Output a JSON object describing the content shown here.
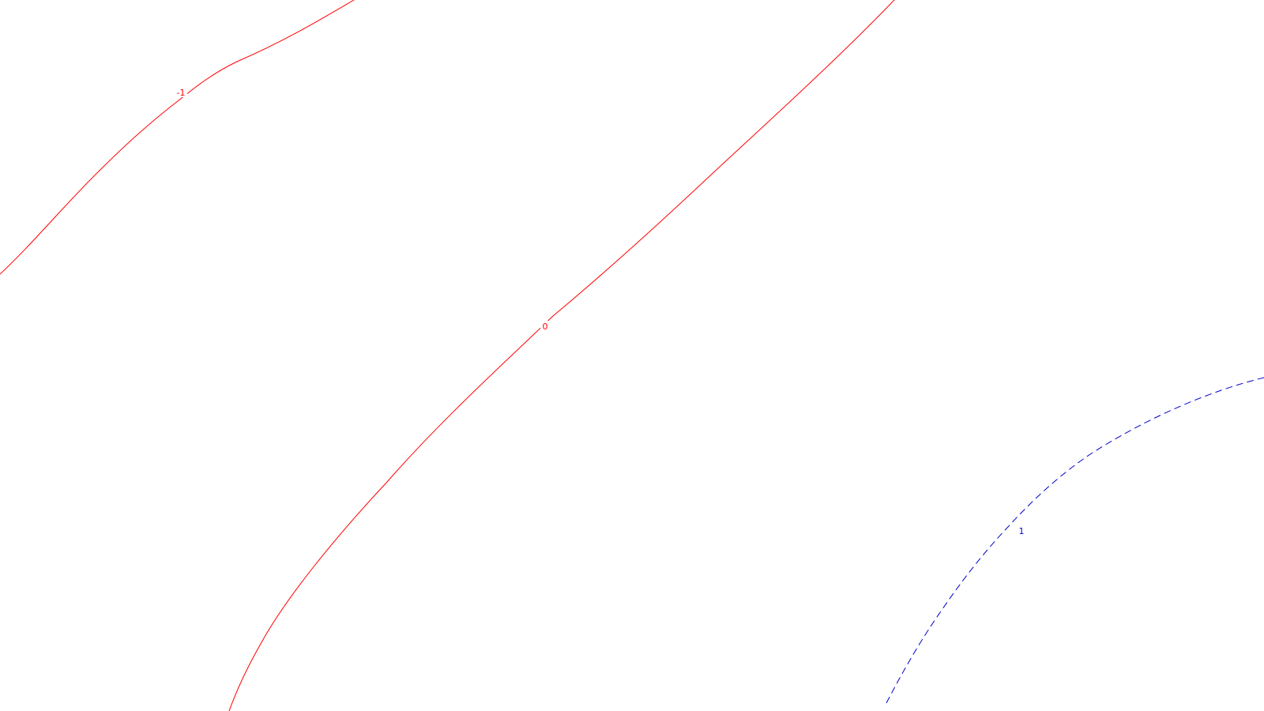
{
  "map": {
    "background_color": "#ffffff",
    "contours": [
      {
        "level_label": "-1",
        "color": "#ff0000",
        "style": "solid"
      },
      {
        "level_label": "0",
        "color": "#ff0000",
        "style": "solid"
      },
      {
        "level_label": "1",
        "color": "#0000cc",
        "style": "dashed"
      }
    ]
  }
}
